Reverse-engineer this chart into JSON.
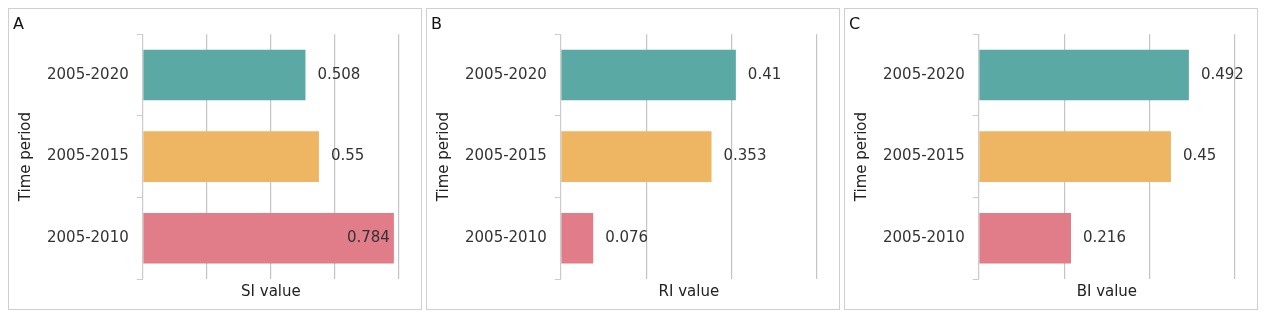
{
  "chart_data": [
    {
      "type": "bar",
      "orientation": "horizontal",
      "title": "A",
      "xlabel": "SI value",
      "ylabel": "Time period",
      "categories": [
        "2005-2020",
        "2005-2015",
        "2005-2010"
      ],
      "values": [
        0.508,
        0.55,
        0.784
      ],
      "colors": [
        "#5aa9a4",
        "#eeb563",
        "#e07d88"
      ],
      "data_labels": true,
      "xlim": [
        0,
        0.8
      ],
      "xticks": [
        {
          "value": 0,
          "label": null
        },
        {
          "value": 0.2,
          "label": null
        },
        {
          "value": 0.4,
          "label": null
        },
        {
          "value": 0.6,
          "label": null
        },
        {
          "value": 0.8,
          "label": null
        }
      ],
      "grid": "x",
      "tick_labels": "y"
    },
    {
      "type": "bar",
      "orientation": "horizontal",
      "title": "B",
      "xlabel": "RI value",
      "ylabel": "Time period",
      "categories": [
        "2005-2020",
        "2005-2015",
        "2005-2010"
      ],
      "values": [
        0.41,
        0.353,
        0.076
      ],
      "colors": [
        "#5aa9a4",
        "#eeb563",
        "#e07d88"
      ],
      "data_labels": true,
      "xlim": [
        0,
        0.6
      ],
      "xticks": [
        {
          "value": 0,
          "label": null
        },
        {
          "value": 0.2,
          "label": null
        },
        {
          "value": 0.4,
          "label": null
        },
        {
          "value": 0.6,
          "label": null
        }
      ],
      "grid": "x",
      "tick_labels": "y"
    },
    {
      "type": "bar",
      "orientation": "horizontal",
      "title": "C",
      "xlabel": "BI value",
      "ylabel": "Time period",
      "categories": [
        "2005-2020",
        "2005-2015",
        "2005-2010"
      ],
      "values": [
        0.492,
        0.45,
        0.216
      ],
      "colors": [
        "#5aa9a4",
        "#eeb563",
        "#e07d88"
      ],
      "data_labels": true,
      "xlim": [
        0,
        0.6
      ],
      "xticks": [
        {
          "value": 0,
          "label": null
        },
        {
          "value": 0.2,
          "label": null
        },
        {
          "value": 0.4,
          "label": null
        },
        {
          "value": 0.6,
          "label": null
        }
      ],
      "grid": "x",
      "tick_labels": "y"
    }
  ]
}
